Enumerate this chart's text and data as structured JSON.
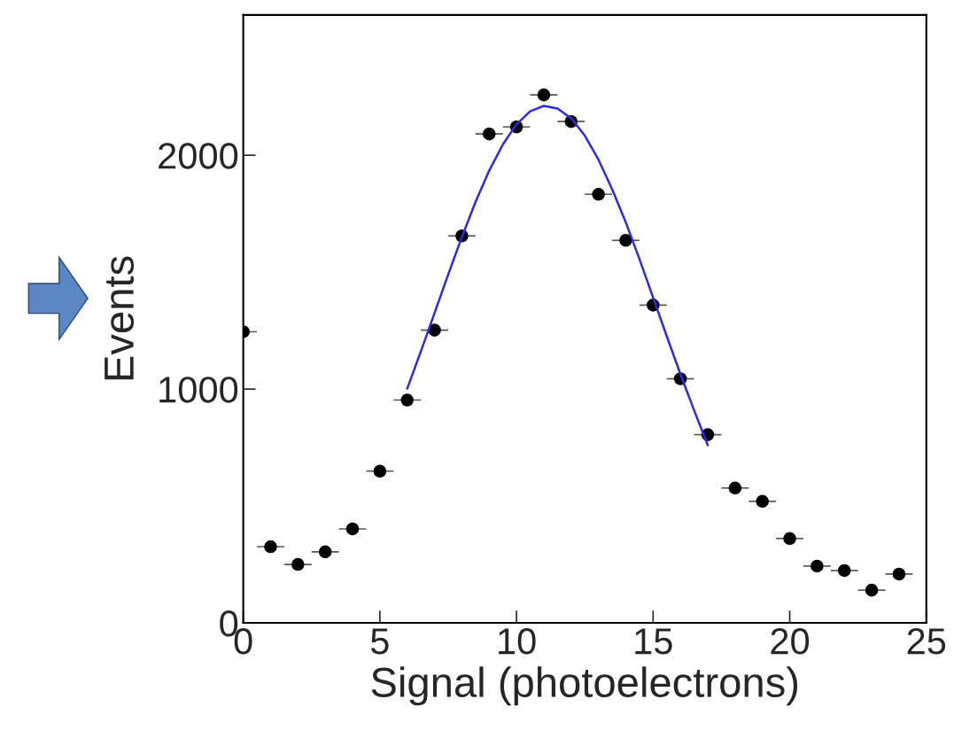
{
  "chart_data": {
    "type": "scatter",
    "xlabel": "Signal (photoelectrons)",
    "ylabel": "Events",
    "xlim": [
      0,
      25
    ],
    "ylim": [
      0,
      2600
    ],
    "xticks": [
      0,
      5,
      10,
      15,
      20,
      25
    ],
    "yticks": [
      0,
      1000,
      2000
    ],
    "grid": false,
    "legend": false,
    "marker": "circle",
    "series": [
      {
        "color": "#000000",
        "x": [
          0,
          1,
          2,
          3,
          4,
          5,
          6,
          7,
          8,
          9,
          10,
          11,
          12,
          13,
          14,
          15,
          16,
          17,
          18,
          19,
          20,
          21,
          22,
          23,
          24
        ],
        "values": [
          1245,
          326,
          250,
          304,
          402,
          649,
          953,
          1252,
          1655,
          2091,
          2121,
          2258,
          2144,
          1833,
          1636,
          1359,
          1044,
          805,
          577,
          520,
          361,
          243,
          224,
          140,
          209
        ],
        "xerrors": [
          0.5,
          0.5,
          0.5,
          0.5,
          0.5,
          0.5,
          0.5,
          0.5,
          0.5,
          0.5,
          0.5,
          0.5,
          0.5,
          0.5,
          0.5,
          0.5,
          0.5,
          0.5,
          0.5,
          0.5,
          0.5,
          0.5,
          0.5,
          0.5,
          0.5
        ]
      },
      {
        "type": "line",
        "color": "#2b2be6",
        "marker": "none",
        "line_style": "solid",
        "x": [
          6,
          6.5,
          7,
          7.5,
          8,
          8.5,
          9,
          9.5,
          10,
          10.5,
          11,
          11.5,
          12,
          12.5,
          13,
          13.5,
          14,
          14.5,
          15,
          15.5,
          16,
          16.5,
          17
        ],
        "values": [
          1002,
          1161,
          1325,
          1490,
          1650,
          1800,
          1934,
          2046,
          2132,
          2188,
          2211,
          2200,
          2158,
          2084,
          1981,
          1855,
          1713,
          1556,
          1391,
          1226,
          1064,
          909,
          760
        ]
      }
    ]
  }
}
